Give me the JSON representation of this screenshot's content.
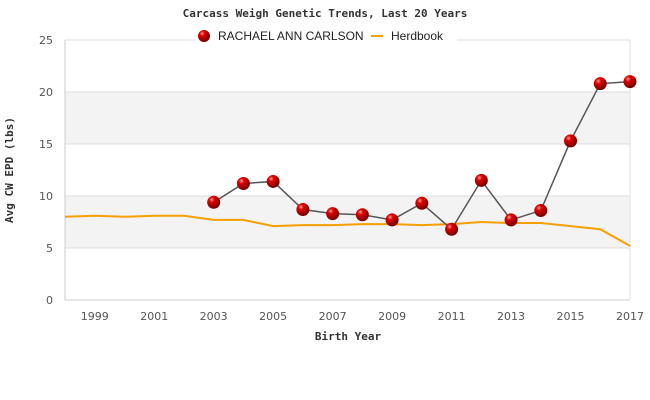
{
  "chart_data": {
    "type": "line",
    "title": "Carcass Weigh Genetic Trends, Last 20 Years",
    "xlabel": "Birth Year",
    "ylabel": "Avg CW EPD (lbs)",
    "xlim": [
      1998,
      2017
    ],
    "ylim": [
      0,
      25
    ],
    "yticks": [
      "0",
      "5",
      "10",
      "15",
      "20",
      "25"
    ],
    "xticks": [
      "1999",
      "2001",
      "2003",
      "2005",
      "2007",
      "2009",
      "2011",
      "2013",
      "2015",
      "2017"
    ],
    "grid": true,
    "legend_position": "top-center",
    "series": [
      {
        "name": "RACHAEL ANN CARLSON",
        "color": "#cc0000",
        "x": [
          2003,
          2004,
          2005,
          2006,
          2007,
          2008,
          2009,
          2010,
          2011,
          2012,
          2013,
          2014,
          2015,
          2016,
          2017
        ],
        "values": [
          9.4,
          11.2,
          11.4,
          8.7,
          8.3,
          8.2,
          7.7,
          9.3,
          6.8,
          11.5,
          7.7,
          8.6,
          15.3,
          20.8,
          21.0
        ]
      },
      {
        "name": "Herdbook",
        "color": "#f5a000",
        "x": [
          1998,
          1999,
          2000,
          2001,
          2002,
          2003,
          2004,
          2005,
          2006,
          2007,
          2008,
          2009,
          2010,
          2011,
          2012,
          2013,
          2014,
          2015,
          2016,
          2017
        ],
        "values": [
          8.0,
          8.1,
          8.0,
          8.1,
          8.1,
          7.7,
          7.7,
          7.1,
          7.2,
          7.2,
          7.3,
          7.3,
          7.2,
          7.3,
          7.5,
          7.4,
          7.4,
          7.1,
          6.8,
          5.2
        ]
      }
    ]
  }
}
